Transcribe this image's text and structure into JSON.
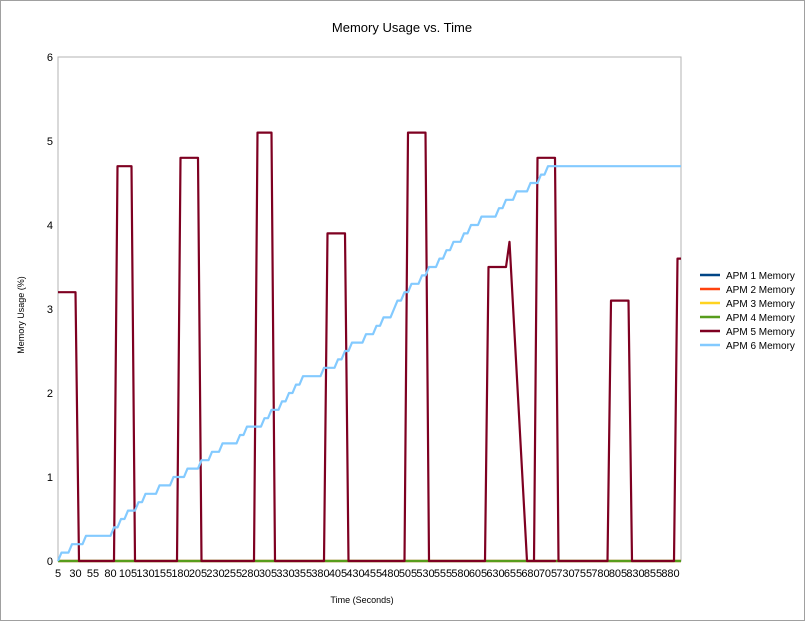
{
  "chart_data": {
    "type": "line",
    "title": "Memory Usage vs. Time",
    "xlabel": "Time (Seconds)",
    "ylabel": "Memory Usage (%)",
    "xlim": [
      5,
      895
    ],
    "ylim": [
      0,
      6
    ],
    "grid": false,
    "legend_position": "right",
    "y_ticks": [
      "0",
      "1",
      "2",
      "3",
      "4",
      "5",
      "6"
    ],
    "x_ticks": [
      "5",
      "30",
      "55",
      "80",
      "105",
      "130",
      "155",
      "180",
      "205",
      "230",
      "255",
      "280",
      "305",
      "330",
      "355",
      "380",
      "405",
      "430",
      "455",
      "480",
      "505",
      "530",
      "555",
      "580",
      "605",
      "630",
      "655",
      "680",
      "705",
      "730",
      "755",
      "780",
      "805",
      "830",
      "855",
      "880"
    ],
    "series": [
      {
        "name": "APM 1 Memory",
        "color": "#004586",
        "x": [
          5,
          895
        ],
        "y": [
          0,
          0
        ]
      },
      {
        "name": "APM 2 Memory",
        "color": "#ff420e",
        "x": [
          5,
          895
        ],
        "y": [
          0,
          0
        ]
      },
      {
        "name": "APM 3 Memory",
        "color": "#ffd320",
        "x": [
          5,
          895
        ],
        "y": [
          0,
          0
        ]
      },
      {
        "name": "APM 4 Memory",
        "color": "#579d1c",
        "x": [
          5,
          895
        ],
        "y": [
          0,
          0
        ]
      },
      {
        "name": "APM 5 Memory",
        "color": "#7e0021",
        "x": [
          5,
          30,
          35,
          85,
          90,
          110,
          115,
          175,
          180,
          205,
          210,
          285,
          290,
          310,
          315,
          385,
          390,
          415,
          420,
          500,
          505,
          530,
          535,
          615,
          620,
          645,
          650,
          675,
          680,
          710,
          715,
          685,
          690,
          715,
          720,
          790,
          795,
          820,
          825,
          885,
          890,
          895
        ],
        "y": [
          3.2,
          3.2,
          0,
          0,
          4.7,
          4.7,
          0,
          0,
          4.8,
          4.8,
          0,
          0,
          5.1,
          5.1,
          0,
          0,
          3.9,
          3.9,
          0,
          0,
          5.1,
          5.1,
          0,
          0,
          3.5,
          3.5,
          3.8,
          0,
          0,
          0,
          0,
          0,
          4.8,
          4.8,
          0,
          0,
          3.1,
          3.1,
          0,
          0,
          3.6,
          3.6
        ]
      },
      {
        "name": "APM 6 Memory",
        "color": "#83caff",
        "x": [
          5,
          10,
          15,
          20,
          25,
          30,
          35,
          40,
          45,
          50,
          55,
          60,
          65,
          70,
          75,
          80,
          85,
          90,
          95,
          100,
          105,
          110,
          115,
          120,
          125,
          130,
          135,
          140,
          145,
          150,
          155,
          160,
          165,
          170,
          175,
          180,
          185,
          190,
          195,
          200,
          205,
          210,
          215,
          220,
          225,
          230,
          235,
          240,
          245,
          250,
          255,
          260,
          265,
          270,
          275,
          280,
          285,
          290,
          295,
          300,
          305,
          310,
          315,
          320,
          325,
          330,
          335,
          340,
          345,
          350,
          355,
          360,
          365,
          370,
          375,
          380,
          385,
          390,
          395,
          400,
          405,
          410,
          415,
          420,
          425,
          430,
          435,
          440,
          445,
          450,
          455,
          460,
          465,
          470,
          475,
          480,
          485,
          490,
          495,
          500,
          505,
          510,
          515,
          520,
          525,
          530,
          535,
          540,
          545,
          550,
          555,
          560,
          565,
          570,
          575,
          580,
          585,
          590,
          595,
          600,
          605,
          610,
          615,
          620,
          625,
          630,
          635,
          640,
          645,
          650,
          655,
          660,
          665,
          670,
          675,
          680,
          685,
          690,
          695,
          700,
          705,
          710,
          715,
          720,
          725,
          730,
          735,
          740,
          745,
          750,
          755,
          760,
          765,
          770,
          775,
          780,
          785,
          790,
          795,
          800,
          805,
          810,
          815,
          820,
          825,
          830,
          835,
          840,
          845,
          850,
          855,
          860,
          865,
          870,
          875,
          880,
          885,
          890,
          895
        ],
        "y": [
          0,
          0.1,
          0.1,
          0.1,
          0.2,
          0.2,
          0.2,
          0.2,
          0.3,
          0.3,
          0.3,
          0.3,
          0.3,
          0.3,
          0.3,
          0.3,
          0.4,
          0.4,
          0.5,
          0.5,
          0.6,
          0.6,
          0.6,
          0.7,
          0.7,
          0.8,
          0.8,
          0.8,
          0.8,
          0.9,
          0.9,
          0.9,
          0.9,
          1.0,
          1.0,
          1.0,
          1.0,
          1.1,
          1.1,
          1.1,
          1.1,
          1.2,
          1.2,
          1.2,
          1.3,
          1.3,
          1.3,
          1.4,
          1.4,
          1.4,
          1.4,
          1.4,
          1.5,
          1.5,
          1.6,
          1.6,
          1.6,
          1.6,
          1.6,
          1.7,
          1.7,
          1.8,
          1.8,
          1.8,
          1.9,
          1.9,
          2.0,
          2.0,
          2.1,
          2.1,
          2.2,
          2.2,
          2.2,
          2.2,
          2.2,
          2.2,
          2.3,
          2.3,
          2.3,
          2.3,
          2.4,
          2.4,
          2.5,
          2.5,
          2.6,
          2.6,
          2.6,
          2.6,
          2.7,
          2.7,
          2.7,
          2.8,
          2.8,
          2.9,
          2.9,
          2.9,
          3.0,
          3.1,
          3.1,
          3.2,
          3.2,
          3.3,
          3.3,
          3.3,
          3.4,
          3.4,
          3.5,
          3.5,
          3.5,
          3.6,
          3.6,
          3.7,
          3.7,
          3.8,
          3.8,
          3.8,
          3.9,
          3.9,
          4.0,
          4.0,
          4.0,
          4.1,
          4.1,
          4.1,
          4.1,
          4.1,
          4.2,
          4.2,
          4.3,
          4.3,
          4.3,
          4.4,
          4.4,
          4.4,
          4.4,
          4.5,
          4.5,
          4.5,
          4.6,
          4.6,
          4.7,
          4.7,
          4.7,
          4.7,
          4.7,
          4.7,
          4.7,
          4.7,
          4.7,
          4.7,
          4.7,
          4.7,
          4.7,
          4.7,
          4.7,
          4.7,
          4.7,
          4.7,
          4.7,
          4.7,
          4.7,
          4.7,
          4.7,
          4.7,
          4.7,
          4.7,
          4.7,
          4.7,
          4.7,
          4.7,
          4.7,
          4.7,
          4.7,
          4.7,
          4.7,
          4.7,
          4.7,
          4.7,
          4.7
        ]
      }
    ]
  }
}
